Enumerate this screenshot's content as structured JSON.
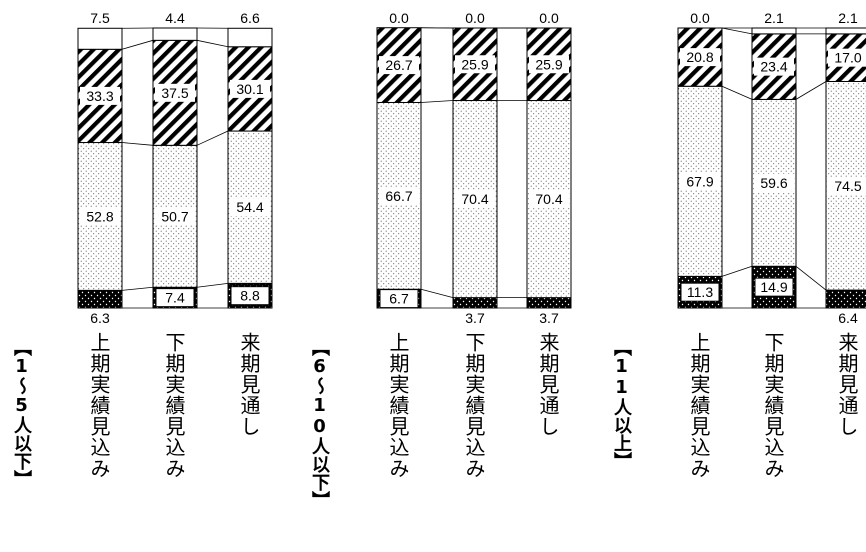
{
  "chart_data": [
    {
      "type": "bar",
      "stacked": true,
      "group_label": "【1～5人以下】",
      "categories": [
        "上期実績見込み",
        "下期実績見込み",
        "来期見通し"
      ],
      "series": [
        {
          "pattern": "dense-dots",
          "values": [
            6.3,
            7.4,
            8.8
          ]
        },
        {
          "pattern": "light-dots",
          "values": [
            52.8,
            50.7,
            54.4
          ]
        },
        {
          "pattern": "diagonal-hatch",
          "values": [
            33.3,
            37.5,
            30.1
          ]
        },
        {
          "pattern": "blank",
          "values": [
            7.5,
            4.4,
            6.6
          ]
        }
      ],
      "ylim": [
        0,
        100
      ]
    },
    {
      "type": "bar",
      "stacked": true,
      "group_label": "【6～10人以下】",
      "categories": [
        "上期実績見込み",
        "下期実績見込み",
        "来期見通し"
      ],
      "series": [
        {
          "pattern": "dense-dots",
          "values": [
            6.7,
            3.7,
            3.7
          ]
        },
        {
          "pattern": "light-dots",
          "values": [
            66.7,
            70.4,
            70.4
          ]
        },
        {
          "pattern": "diagonal-hatch",
          "values": [
            26.7,
            25.9,
            25.9
          ]
        },
        {
          "pattern": "blank",
          "values": [
            0.0,
            0.0,
            0.0
          ]
        }
      ],
      "ylim": [
        0,
        100
      ]
    },
    {
      "type": "bar",
      "stacked": true,
      "group_label": "【11人以上】",
      "categories": [
        "上期実績見込み",
        "下期実績見込み",
        "来期見通し"
      ],
      "series": [
        {
          "pattern": "dense-dots",
          "values": [
            11.3,
            14.9,
            6.4
          ]
        },
        {
          "pattern": "light-dots",
          "values": [
            67.9,
            59.6,
            74.5
          ]
        },
        {
          "pattern": "diagonal-hatch",
          "values": [
            20.8,
            23.4,
            17.0
          ]
        },
        {
          "pattern": "blank",
          "values": [
            0.0,
            2.1,
            2.1
          ]
        }
      ],
      "ylim": [
        0,
        100
      ]
    }
  ],
  "colors": {
    "ink": "#000000",
    "paper": "#ffffff",
    "dot_fill": "#000000"
  }
}
